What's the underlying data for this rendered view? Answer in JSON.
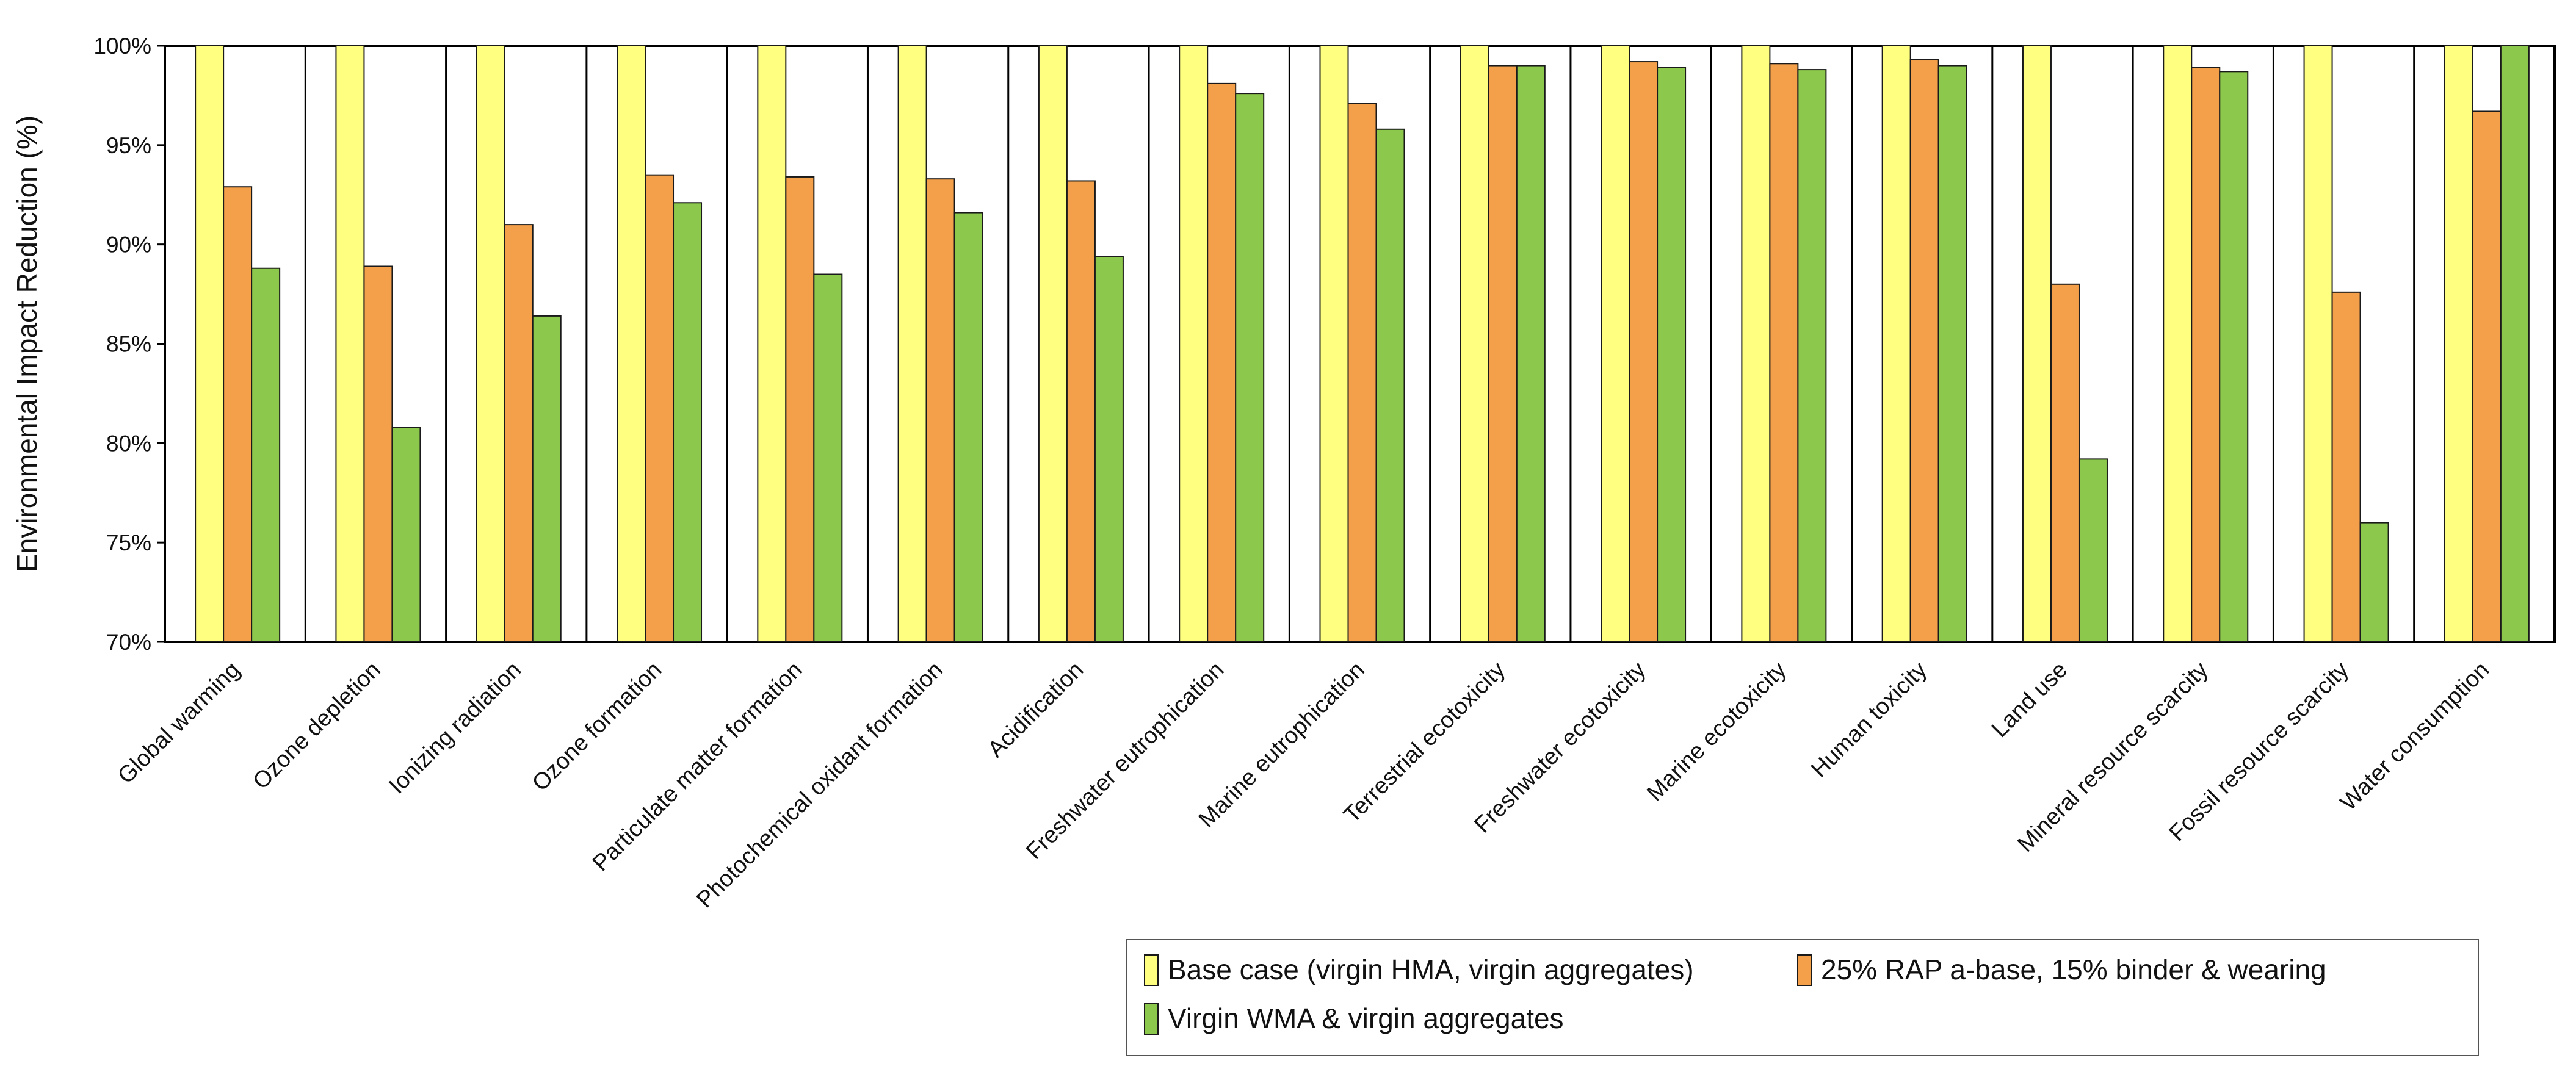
{
  "chart_data": {
    "type": "bar",
    "title": "",
    "xlabel": "",
    "ylabel": "Environmental Impact Reduction (%)",
    "ylim": [
      70,
      100
    ],
    "yticks": [
      "70%",
      "75%",
      "80%",
      "85%",
      "90%",
      "95%",
      "100%"
    ],
    "ytick_values": [
      70,
      75,
      80,
      85,
      90,
      95,
      100
    ],
    "grid": false,
    "legend_position": "bottom-right",
    "categories": [
      "Global warming",
      "Ozone depletion",
      "Ionizing radiation",
      "Ozone formation",
      "Particulate matter formation",
      "Photochemical oxidant formation",
      "Acidification",
      "Freshwater eutrophication",
      "Marine eutrophication",
      "Terrestrial ecotoxicity",
      "Freshwater ecotoxicity",
      "Marine ecotoxicity",
      "Human toxicity",
      "Land use",
      "Mineral resource scarcity",
      "Fossil resource scarcity",
      "Water consumption"
    ],
    "series": [
      {
        "name": "Base case (virgin HMA, virgin aggregates)",
        "color": "#ffff80",
        "values": [
          100,
          100,
          100,
          100,
          100,
          100,
          100,
          100,
          100,
          100,
          100,
          100,
          100,
          100,
          100,
          100,
          100
        ]
      },
      {
        "name": "25% RAP a-base, 15% binder & wearing",
        "color": "#f4a04a",
        "values": [
          92.9,
          88.9,
          91.0,
          93.5,
          93.4,
          93.3,
          93.2,
          98.1,
          97.1,
          99.0,
          99.2,
          99.1,
          99.3,
          88.0,
          98.9,
          87.6,
          96.7
        ]
      },
      {
        "name": "Virgin WMA & virgin aggregates",
        "color": "#8cc84b",
        "values": [
          88.8,
          80.8,
          86.4,
          92.1,
          88.5,
          91.6,
          89.4,
          97.6,
          95.8,
          99.0,
          98.9,
          98.8,
          99.0,
          79.2,
          98.7,
          76.0,
          100
        ]
      }
    ]
  }
}
